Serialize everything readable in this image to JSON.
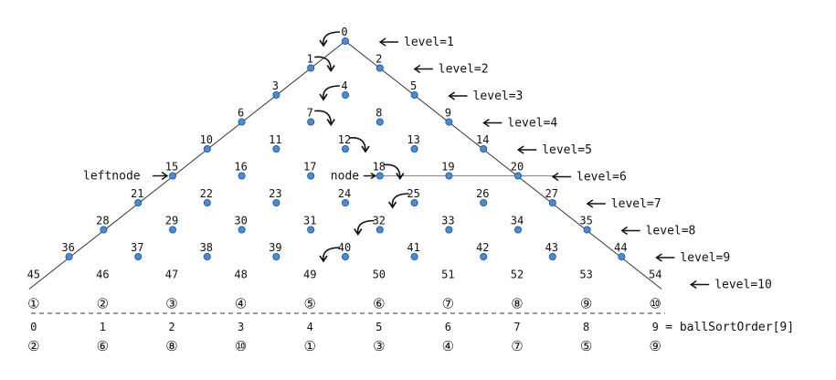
{
  "levels": [
    "level=1",
    "level=2",
    "level=3",
    "level=4",
    "level=5",
    "level=6",
    "level=7",
    "level=8",
    "level=9",
    "level=10"
  ],
  "leftnode_label": "leftnode",
  "node_label": "node",
  "bottom_marks": [
    "①",
    "②",
    "③",
    "④",
    "⑤",
    "⑥",
    "⑦",
    "⑧",
    "⑨",
    "⑩"
  ],
  "sort_indices": [
    "0",
    "1",
    "2",
    "3",
    "4",
    "5",
    "6",
    "7",
    "8",
    "9"
  ],
  "sort_values": [
    "②",
    "⑥",
    "⑧",
    "⑩",
    "①",
    "③",
    "④",
    "⑦",
    "⑤",
    "⑨"
  ],
  "sort_caption": "= ballSortOrder[9]",
  "node_numbers": [
    "0",
    "1",
    "2",
    "3",
    "4",
    "5",
    "6",
    "7",
    "8",
    "9",
    "10",
    "11",
    "12",
    "13",
    "14",
    "15",
    "16",
    "17",
    "18",
    "19",
    "20",
    "21",
    "22",
    "23",
    "24",
    "25",
    "26",
    "27",
    "28",
    "29",
    "30",
    "31",
    "32",
    "33",
    "34",
    "35",
    "36",
    "37",
    "38",
    "39",
    "40",
    "41",
    "42",
    "43",
    "44",
    "45",
    "46",
    "47",
    "48",
    "49",
    "50",
    "51",
    "52",
    "53",
    "54"
  ],
  "highlight_path_nodes": [
    0,
    1,
    4,
    7,
    12,
    18,
    25,
    32,
    40,
    49
  ],
  "colors": {
    "node_fill": "#3d8ee6",
    "node_stroke": "#1c4f8c",
    "text": "#111111",
    "row6_line": "#888888"
  }
}
